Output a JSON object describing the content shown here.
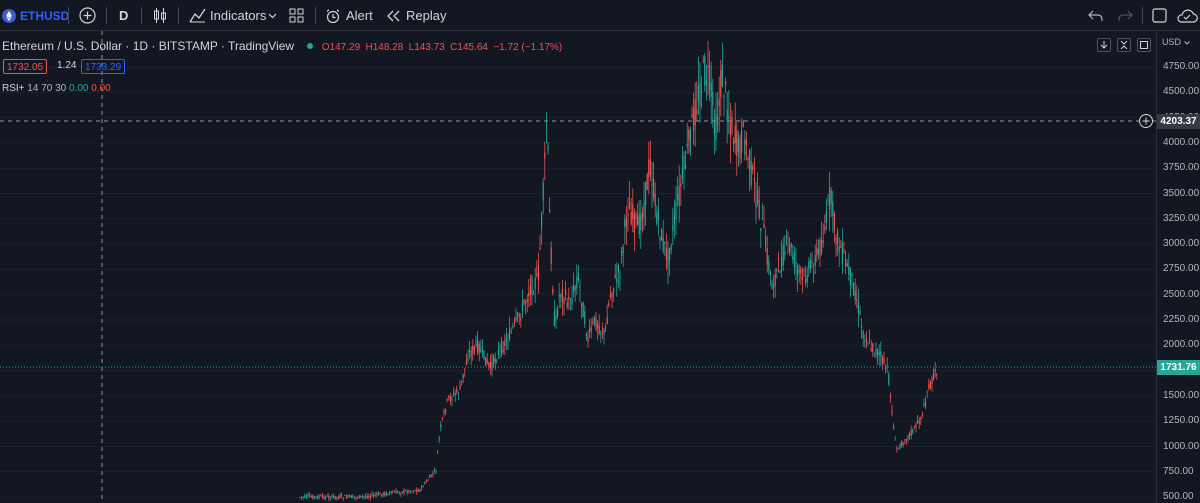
{
  "toolbar": {
    "symbol": "ETHUSD",
    "interval": "D",
    "indicators_label": "Indicators",
    "alert_label": "Alert",
    "replay_label": "Replay"
  },
  "legend": {
    "title": "Ethereum / U.S. Dollar · 1D · BITSTAMP · TradingView",
    "open": "O147.29",
    "high": "H148.28",
    "low": "L143.73",
    "close": "C145.64",
    "change": "−1.72 (−1.17%)",
    "bid": "1732.05",
    "spread": "1.24",
    "ask": "1733.29",
    "rsi_name": "RSI+",
    "rsi_params": "14 70 30",
    "rsi_val1": "0.00",
    "rsi_val2": "0.00"
  },
  "axis": {
    "currency": "USD",
    "ticks": [
      "4750.00",
      "4500.00",
      "4250.00",
      "4000.00",
      "3750.00",
      "3500.00",
      "3250.00",
      "3000.00",
      "2750.00",
      "2500.00",
      "2250.00",
      "2000.00",
      "1750.00",
      "1500.00",
      "1250.00",
      "1000.00",
      "750.00",
      "500.00"
    ],
    "crosshair_price": "4203.37",
    "last_price": "1731.76"
  },
  "colors": {
    "background": "#131722",
    "up": "#26a69a",
    "down": "#ef5350",
    "accent": "#2962ff",
    "last_price_tag": "#26a69a"
  },
  "chart_data": {
    "type": "candlestick",
    "symbol": "ETHUSD",
    "timeframe": "1D",
    "ylim": [
      400,
      4950
    ],
    "price_path": [
      [
        300,
        497
      ],
      [
        330,
        497
      ],
      [
        360,
        497
      ],
      [
        400,
        492
      ],
      [
        420,
        490
      ],
      [
        436,
        470
      ],
      [
        440,
        430
      ],
      [
        448,
        400
      ],
      [
        460,
        390
      ],
      [
        468,
        355
      ],
      [
        478,
        345
      ],
      [
        490,
        368
      ],
      [
        500,
        350
      ],
      [
        510,
        335
      ],
      [
        520,
        315
      ],
      [
        530,
        288
      ],
      [
        538,
        280
      ],
      [
        543,
        200
      ],
      [
        547,
        120
      ],
      [
        550,
        230
      ],
      [
        555,
        330
      ],
      [
        560,
        290
      ],
      [
        570,
        305
      ],
      [
        578,
        275
      ],
      [
        588,
        340
      ],
      [
        595,
        320
      ],
      [
        605,
        335
      ],
      [
        610,
        295
      ],
      [
        620,
        270
      ],
      [
        628,
        205
      ],
      [
        638,
        230
      ],
      [
        645,
        200
      ],
      [
        650,
        160
      ],
      [
        656,
        210
      ],
      [
        662,
        240
      ],
      [
        668,
        258
      ],
      [
        680,
        190
      ],
      [
        688,
        150
      ],
      [
        696,
        105
      ],
      [
        705,
        70
      ],
      [
        710,
        85
      ],
      [
        716,
        130
      ],
      [
        722,
        75
      ],
      [
        730,
        120
      ],
      [
        738,
        150
      ],
      [
        744,
        135
      ],
      [
        750,
        165
      ],
      [
        756,
        195
      ],
      [
        764,
        235
      ],
      [
        772,
        285
      ],
      [
        780,
        265
      ],
      [
        788,
        242
      ],
      [
        795,
        262
      ],
      [
        802,
        280
      ],
      [
        810,
        268
      ],
      [
        818,
        255
      ],
      [
        826,
        225
      ],
      [
        830,
        195
      ],
      [
        836,
        235
      ],
      [
        844,
        258
      ],
      [
        855,
        290
      ],
      [
        863,
        332
      ],
      [
        870,
        345
      ],
      [
        880,
        355
      ],
      [
        888,
        372
      ],
      [
        896,
        450
      ],
      [
        905,
        440
      ],
      [
        915,
        428
      ],
      [
        922,
        415
      ],
      [
        930,
        385
      ],
      [
        938,
        368
      ]
    ]
  }
}
